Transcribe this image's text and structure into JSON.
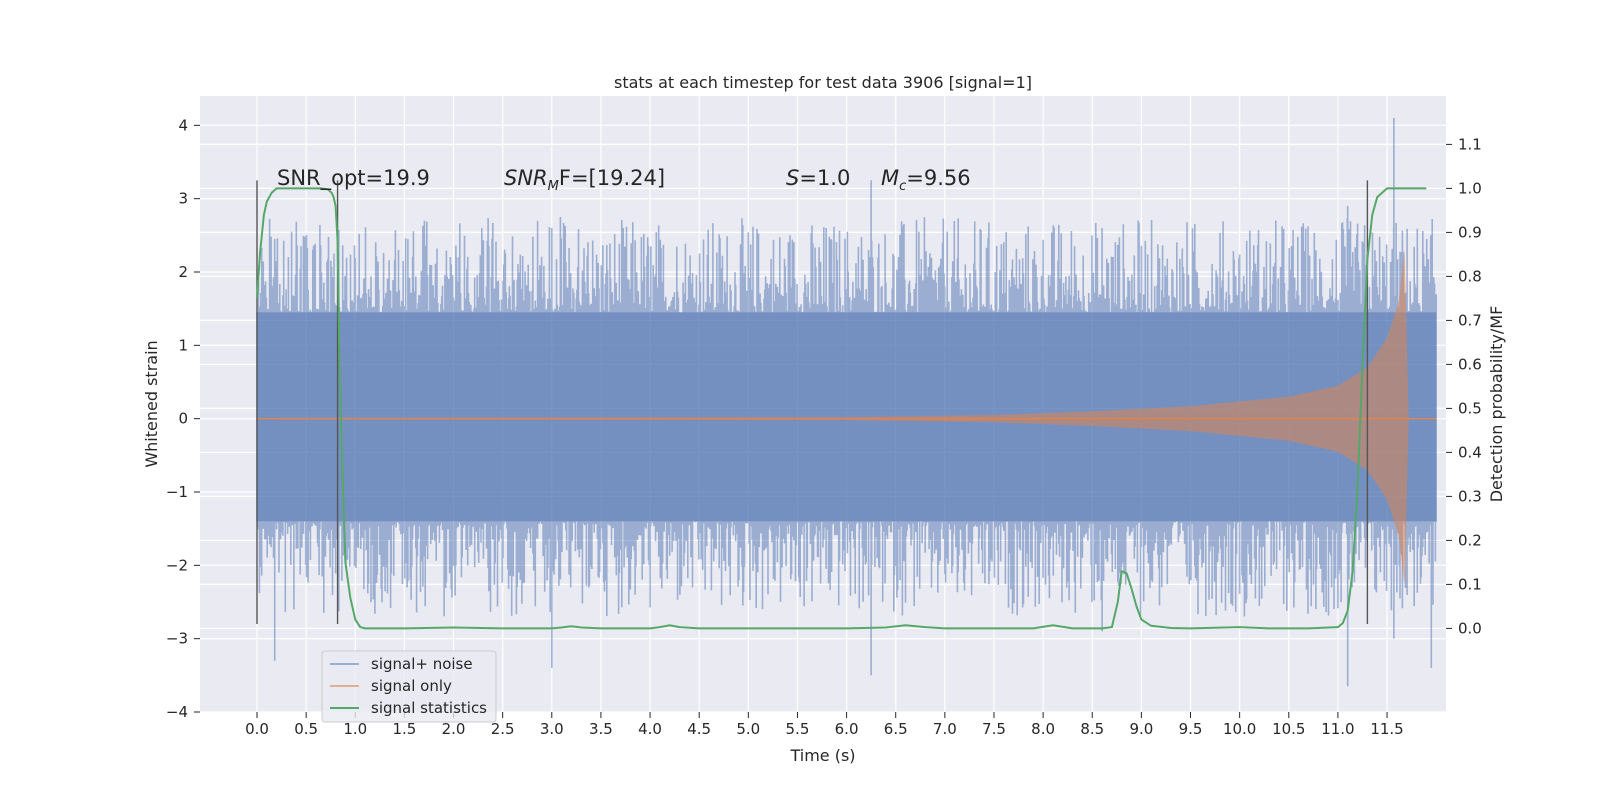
{
  "chart_data": {
    "type": "line",
    "title": "stats at each timestep for test data 3906 [signal=1]",
    "xlabel": "Time (s)",
    "ylabel": "Whitened strain",
    "ylabel_right": "Detection probability/MF",
    "xlim": [
      -0.58,
      12.1
    ],
    "ylim": [
      -4.0,
      4.4
    ],
    "ylim_right": [
      -0.19,
      1.21
    ],
    "x_ticks": [
      "0.0",
      "0.5",
      "1.0",
      "1.5",
      "2.0",
      "2.5",
      "3.0",
      "3.5",
      "4.0",
      "4.5",
      "5.0",
      "5.5",
      "6.0",
      "6.5",
      "7.0",
      "7.5",
      "8.0",
      "8.5",
      "9.0",
      "9.5",
      "10.0",
      "10.5",
      "11.0",
      "11.5"
    ],
    "y_ticks": [
      "4",
      "3",
      "2",
      "1",
      "0",
      "−1",
      "−2",
      "−3",
      "−4"
    ],
    "y_ticks_right": [
      "1.1",
      "1.0",
      "0.9",
      "0.8",
      "0.7",
      "0.6",
      "0.5",
      "0.4",
      "0.3",
      "0.2",
      "0.1",
      "0.0"
    ],
    "grid": true,
    "legend": {
      "position": "lower-left",
      "entries": [
        "signal+ noise",
        "signal only",
        "signal statistics"
      ]
    },
    "annotations": {
      "snr_opt": "SNR_opt=19.9",
      "snr_mf_pre": "SNR",
      "snr_mf_sub": "M",
      "snr_mf_post": "F=[19.24]",
      "s_var": "S",
      "s_val": "=1.0",
      "mc_var": "M",
      "mc_sub": "c",
      "mc_val": "=9.56"
    },
    "series": [
      {
        "name": "signal+ noise",
        "color": "#4c72b0",
        "alpha": 0.5,
        "time_range": [
          0.0,
          12.0
        ],
        "band_envelope": {
          "upper": 1.45,
          "lower": -1.4
        },
        "peak_extremes": {
          "max": 4.1,
          "max_at": 11.57,
          "min": -3.65,
          "min_at": 11.1
        }
      },
      {
        "name": "signal only",
        "color": "#dd8452",
        "time_range": [
          0.0,
          12.0
        ],
        "envelope_points": [
          [
            0.0,
            0.01
          ],
          [
            6.0,
            0.02
          ],
          [
            7.5,
            0.05
          ],
          [
            8.5,
            0.1
          ],
          [
            9.5,
            0.17
          ],
          [
            10.5,
            0.3
          ],
          [
            11.0,
            0.45
          ],
          [
            11.3,
            0.7
          ],
          [
            11.5,
            1.1
          ],
          [
            11.62,
            1.6
          ],
          [
            11.68,
            2.3
          ],
          [
            11.72,
            0.0
          ]
        ]
      },
      {
        "name": "signal statistics",
        "color": "#55a868",
        "axis": "right",
        "x": [
          0.0,
          0.03,
          0.07,
          0.1,
          0.15,
          0.2,
          0.3,
          0.5,
          0.65,
          0.72,
          0.76,
          0.78,
          0.8,
          0.82,
          0.84,
          0.87,
          0.9,
          0.95,
          1.0,
          1.05,
          1.1,
          1.2,
          1.5,
          2.0,
          2.5,
          3.0,
          3.1,
          3.2,
          3.3,
          3.5,
          4.0,
          4.1,
          4.2,
          4.3,
          4.5,
          5.0,
          6.0,
          6.4,
          6.6,
          6.8,
          7.0,
          7.8,
          7.9,
          8.1,
          8.3,
          8.6,
          8.7,
          8.76,
          8.8,
          8.85,
          8.9,
          8.95,
          9.0,
          9.1,
          9.3,
          9.5,
          10.0,
          10.3,
          10.7,
          11.0,
          11.05,
          11.1,
          11.15,
          11.2,
          11.25,
          11.3,
          11.35,
          11.4,
          11.45,
          11.5,
          11.6,
          11.9
        ],
        "y": [
          0.75,
          0.85,
          0.94,
          0.97,
          0.99,
          1.0,
          1.0,
          1.0,
          1.0,
          0.998,
          0.99,
          0.98,
          0.96,
          0.88,
          0.6,
          0.35,
          0.15,
          0.07,
          0.02,
          0.003,
          0.0,
          0.0,
          0.0,
          0.002,
          0.0,
          0.0,
          0.002,
          0.005,
          0.002,
          0.0,
          0.0,
          0.003,
          0.007,
          0.003,
          0.0,
          0.0,
          0.0,
          0.002,
          0.007,
          0.003,
          0.0,
          0.0,
          0.0,
          0.007,
          0.0,
          0.0,
          0.003,
          0.06,
          0.13,
          0.125,
          0.09,
          0.05,
          0.02,
          0.006,
          0.001,
          0.0,
          0.003,
          0.0,
          0.0,
          0.003,
          0.012,
          0.04,
          0.13,
          0.32,
          0.6,
          0.84,
          0.94,
          0.98,
          0.99,
          1.0,
          1.0,
          1.0
        ]
      }
    ],
    "vertical_lines": [
      {
        "x": 0.0,
        "y_from": -2.8,
        "y_to": 3.25
      },
      {
        "x": 0.82,
        "y_from": -2.8,
        "y_to": 3.25
      },
      {
        "x": 11.3,
        "y_from": -2.8,
        "y_to": 3.25
      }
    ]
  }
}
